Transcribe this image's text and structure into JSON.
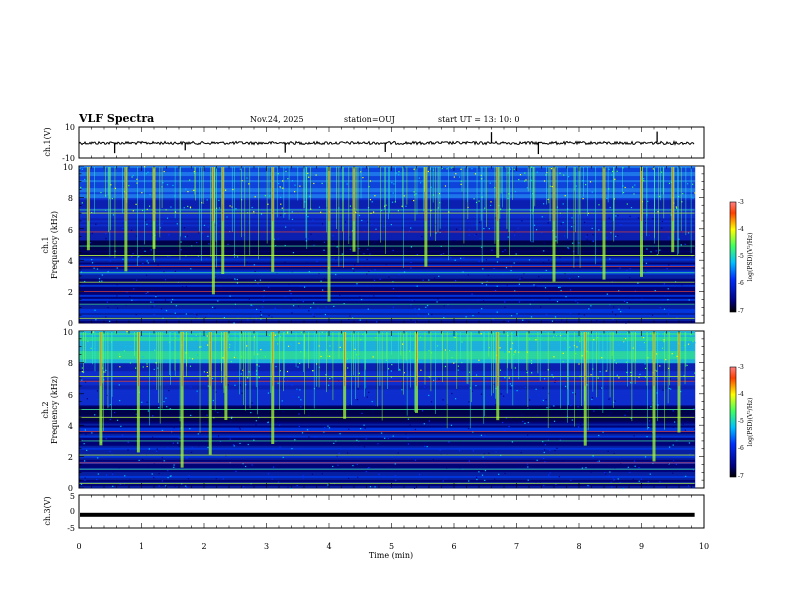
{
  "header": {
    "title": "VLF Spectra",
    "date": "Nov.24, 2025",
    "station": "station=OUJ",
    "start_ut": "start  UT =   13: 10: 0"
  },
  "colors": {
    "low": "#000080",
    "mid1": "#0030ff",
    "mid2": "#00c0ff",
    "mid3": "#40ff60",
    "mid4": "#ffff00",
    "high": "#ff0000"
  },
  "chart_data": [
    {
      "type": "line",
      "name": "ch1-waveform",
      "ylabel": "ch.1(V)",
      "ylim": [
        -10,
        10
      ],
      "yticks": [
        "10",
        "-10"
      ],
      "baseline": 0,
      "xlim": [
        0,
        10
      ],
      "data_extent_min": 9.85,
      "spike_times": [
        0.57,
        1.7,
        3.3,
        4.9,
        6.6,
        7.35,
        9.25
      ]
    },
    {
      "type": "heatmap",
      "name": "ch1-spectrogram",
      "ylabel_line1": "ch.1",
      "ylabel_line2": "Frequency  (kHz)",
      "ylim": [
        0,
        10
      ],
      "yticks": [
        "0",
        "2",
        "4",
        "6",
        "8",
        "10"
      ],
      "xlim": [
        0,
        10
      ],
      "colorbar": {
        "label": "log(PSD)(V²/Hz)",
        "range": [
          -7,
          -3
        ],
        "ticks": [
          "-3",
          "-4",
          "-5",
          "-6",
          "-7"
        ]
      },
      "strong_lines_khz": [
        0.3,
        1.2,
        2.0,
        2.6,
        3.2,
        3.6,
        4.3,
        4.9,
        5.8,
        7.0,
        7.2
      ],
      "bursts_min": [
        0.15,
        0.75,
        1.2,
        2.15,
        2.3,
        3.1,
        4.0,
        4.4,
        5.55,
        6.7,
        7.6,
        8.4,
        9.0,
        9.5
      ]
    },
    {
      "type": "heatmap",
      "name": "ch2-spectrogram",
      "ylabel_line1": "ch.2",
      "ylabel_line2": "Frequency  (kHz)",
      "ylim": [
        0,
        10
      ],
      "yticks": [
        "0",
        "2",
        "4",
        "6",
        "8",
        "10"
      ],
      "xlim": [
        0,
        10
      ],
      "colorbar": {
        "label": "log(PSD)(V²/Hz)",
        "range": [
          -7,
          -3
        ],
        "ticks": [
          "-3",
          "-4",
          "-5",
          "-6",
          "-7"
        ]
      },
      "strong_lines_khz": [
        0.3,
        1.2,
        1.6,
        2.1,
        3.0,
        3.6,
        4.5,
        5.0,
        6.8,
        7.1
      ],
      "bursts_min": [
        0.35,
        0.95,
        1.65,
        2.1,
        2.35,
        3.1,
        4.25,
        5.4,
        6.7,
        8.1,
        9.2,
        9.6
      ]
    },
    {
      "type": "line",
      "name": "ch3-waveform",
      "ylabel": "ch.3(V)",
      "ylim": [
        -5,
        5
      ],
      "yticks": [
        "5",
        "0",
        "-5"
      ],
      "value": -1.0,
      "xlim": [
        0,
        10
      ],
      "data_extent_min": 9.85
    }
  ],
  "xaxis": {
    "label": "Time  (min)",
    "ticks": [
      "0",
      "1",
      "2",
      "3",
      "4",
      "5",
      "6",
      "7",
      "8",
      "9",
      "10"
    ]
  }
}
